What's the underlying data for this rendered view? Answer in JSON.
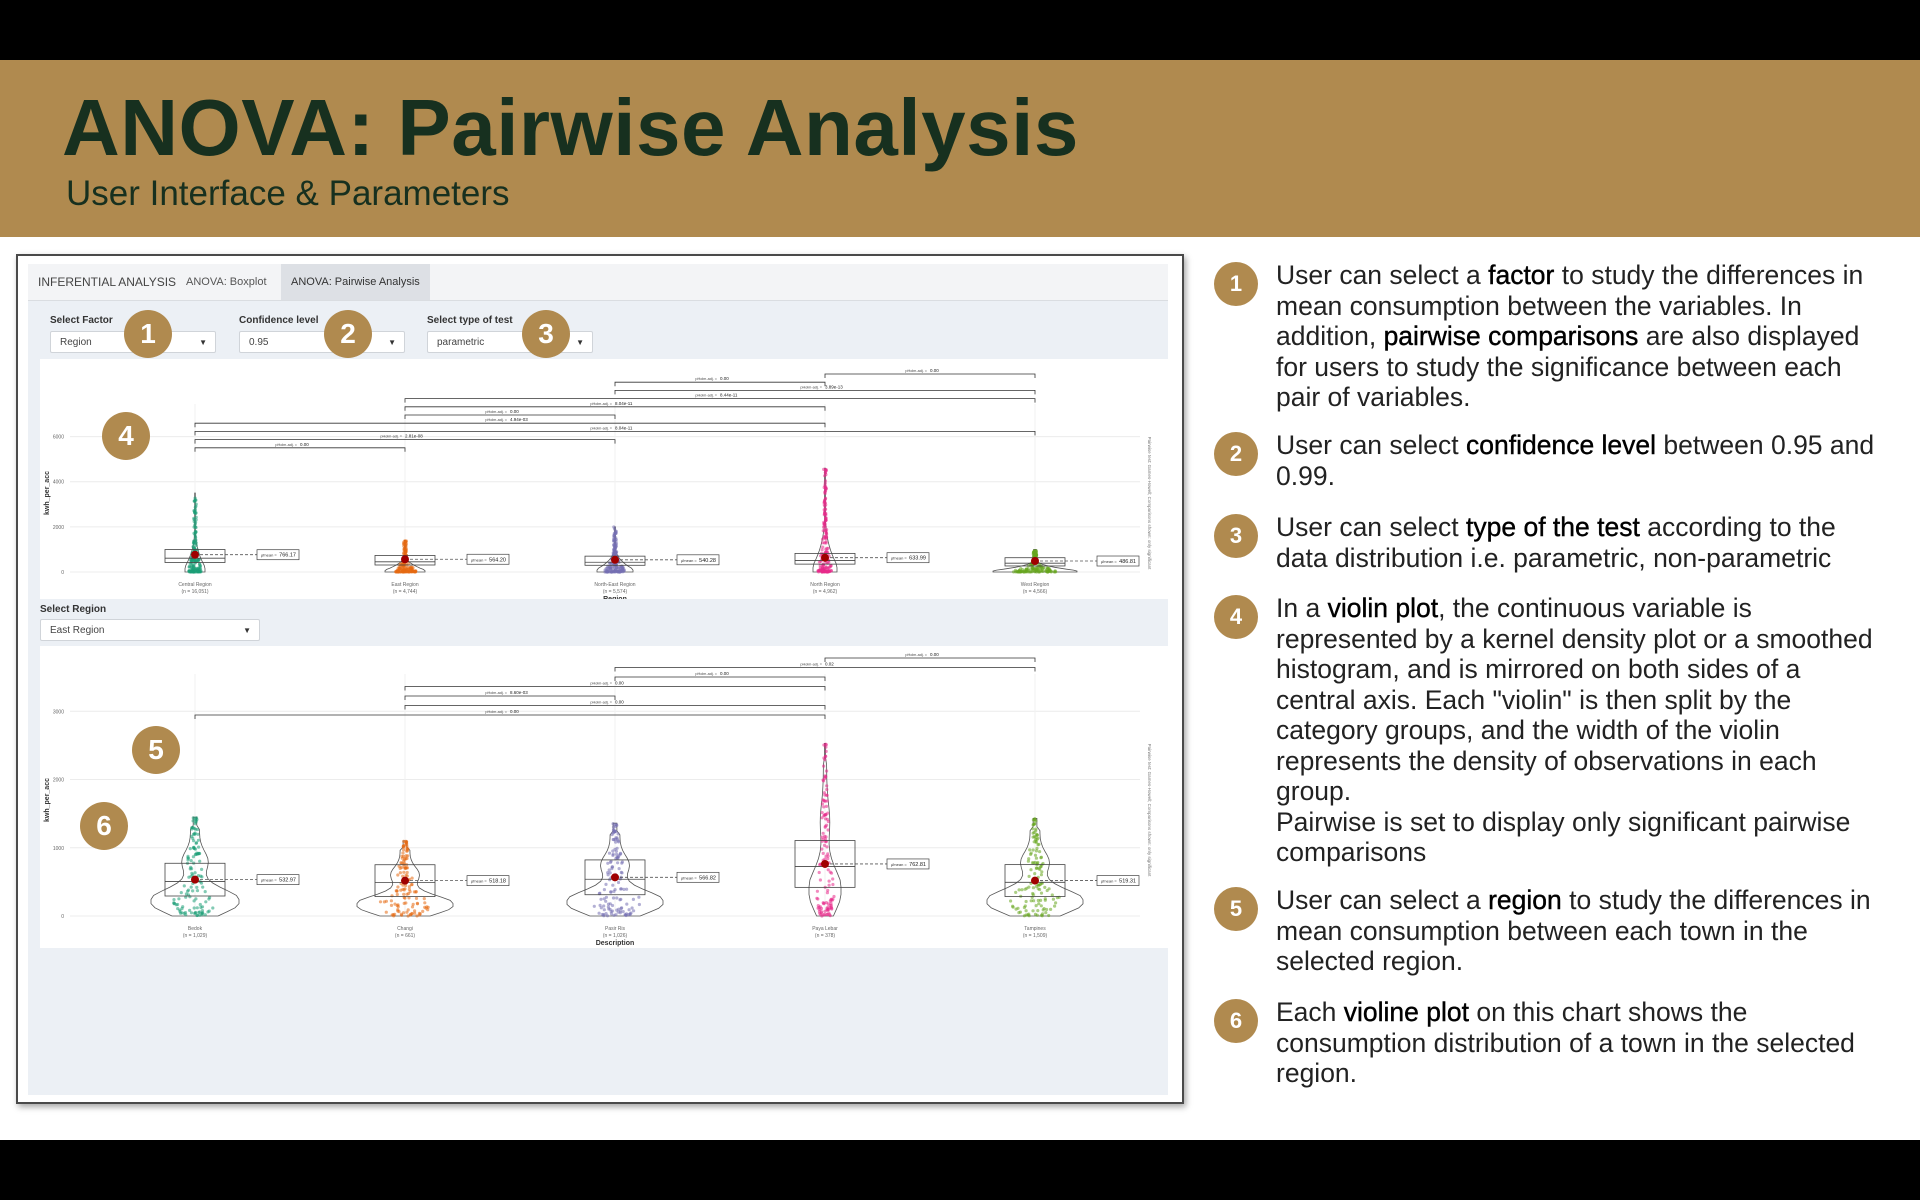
{
  "slide": {
    "title": "ANOVA: Pairwise Analysis",
    "subtitle": "User Interface & Parameters"
  },
  "app": {
    "tabs": [
      "INFERENTIAL ANALYSIS",
      "ANOVA: Boxplot",
      "ANOVA: Pairwise Analysis"
    ],
    "active_tab": "ANOVA: Pairwise Analysis",
    "controls": {
      "factor": {
        "label": "Select Factor",
        "value": "Region"
      },
      "confidence": {
        "label": "Confidence level",
        "value": "0.95"
      },
      "test_type": {
        "label": "Select type of test",
        "value": "parametric"
      },
      "region": {
        "label": "Select Region",
        "value": "East Region"
      }
    }
  },
  "badges": [
    "1",
    "2",
    "3",
    "4",
    "5",
    "6"
  ],
  "notes": [
    {
      "num": "1",
      "html": "User can select a <b>factor</b> to study the differences in mean consumption between the variables. In addition, <b>pairwise comparisons</b> are also displayed for users to study the significance between each pair of variables."
    },
    {
      "num": "2",
      "html": "User can select <b>confidence level</b> between 0.95 and 0.99."
    },
    {
      "num": "3",
      "html": "User can select <b>type of the test</b> according to the data distribution i.e. parametric, non-parametric"
    },
    {
      "num": "4",
      "html": "In a <b>violin plot</b>, the continuous variable is represented by a kernel density plot or a smoothed histogram, and is mirrored on both sides of a central axis. Each \"violin\" is then split by the category groups, and the width of the violin represents the density of observations in each group.<br>Pairwise is set to display only significant pairwise comparisons"
    },
    {
      "num": "5",
      "html": "User can select a <b>region</b> to study the differences in mean consumption between each town in the selected region."
    },
    {
      "num": "6",
      "html": "Each <b>violine plot</b> on this chart shows the consumption distribution of a town in the selected region."
    }
  ],
  "chart_data": [
    {
      "type": "violin",
      "xlabel": "Region",
      "ylabel": "kwh_per_acc",
      "y_ticks": [
        "0",
        "2000",
        "4000",
        "6000"
      ],
      "ylim": [
        0,
        7000
      ],
      "side_caption": "Pairwise test: Games-Howell; Comparisons shown: only significant",
      "categories": [
        "Central Region",
        "East Region",
        "North-East Region",
        "North Region",
        "West Region"
      ],
      "counts": [
        "(n = 16,051)",
        "(n = 4,744)",
        "(n = 5,574)",
        "(n = 4,962)",
        "(n = 4,566)"
      ],
      "colors": [
        "#1b9e77",
        "#e66a13",
        "#7570b3",
        "#e7298a",
        "#66a61e"
      ],
      "max": [
        3500,
        1400,
        2000,
        4600,
        1000
      ],
      "means": [
        766.17,
        564.2,
        540.28,
        633.99,
        486.81
      ],
      "mean_labels": [
        "766.17",
        "564.20",
        "540.28",
        "633.99",
        "486.81"
      ],
      "mean_prefix": "μ̂mean =",
      "pairs": [
        {
          "from": 3,
          "to": 4,
          "label": "0.00"
        },
        {
          "from": 2,
          "to": 3,
          "label": "0.00"
        },
        {
          "from": 2,
          "to": 4,
          "label": "3.89e-13"
        },
        {
          "from": 1,
          "to": 4,
          "label": "8.44e-11"
        },
        {
          "from": 1,
          "to": 3,
          "label": "8.04e-11"
        },
        {
          "from": 1,
          "to": 2,
          "label": "0.00"
        },
        {
          "from": 0,
          "to": 3,
          "label": "4.94e-03"
        },
        {
          "from": 0,
          "to": 4,
          "label": "8.04e-11"
        },
        {
          "from": 0,
          "to": 2,
          "label": "2.81e-08"
        },
        {
          "from": 0,
          "to": 1,
          "label": "0.00"
        }
      ],
      "pair_prefix": "pHolm-adj. ="
    },
    {
      "type": "violin",
      "xlabel": "Description",
      "ylabel": "kwh_per_acc",
      "y_ticks": [
        "0",
        "1000",
        "2000",
        "3000"
      ],
      "ylim": [
        0,
        3400
      ],
      "side_caption": "Pairwise test: Games-Howell; Comparisons shown: only significant",
      "categories": [
        "Bedok",
        "Changi",
        "Pasir Ris",
        "Paya Lebar",
        "Tampines"
      ],
      "counts": [
        "(n = 1,029)",
        "(n = 661)",
        "(n = 1,026)",
        "(n = 378)",
        "(n = 1,509)"
      ],
      "colors": [
        "#1b9e77",
        "#e66a13",
        "#7570b3",
        "#e7298a",
        "#66a61e"
      ],
      "max": [
        1450,
        1100,
        1360,
        2530,
        1430
      ],
      "means": [
        532.97,
        518.18,
        566.82,
        762.81,
        519.31
      ],
      "mean_labels": [
        "532.97",
        "518.18",
        "566.82",
        "762.81",
        "519.31"
      ],
      "mean_prefix": "μ̂mean =",
      "pairs": [
        {
          "from": 3,
          "to": 4,
          "label": "0.00"
        },
        {
          "from": 2,
          "to": 4,
          "label": "0.02"
        },
        {
          "from": 2,
          "to": 3,
          "label": "0.00"
        },
        {
          "from": 1,
          "to": 3,
          "label": "0.00"
        },
        {
          "from": 1,
          "to": 2,
          "label": "8.60e-03"
        },
        {
          "from": 1,
          "to": 3,
          "label": "0.00"
        },
        {
          "from": 0,
          "to": 3,
          "label": "0.00"
        }
      ],
      "pair_prefix": "pHolm-adj. ="
    }
  ]
}
